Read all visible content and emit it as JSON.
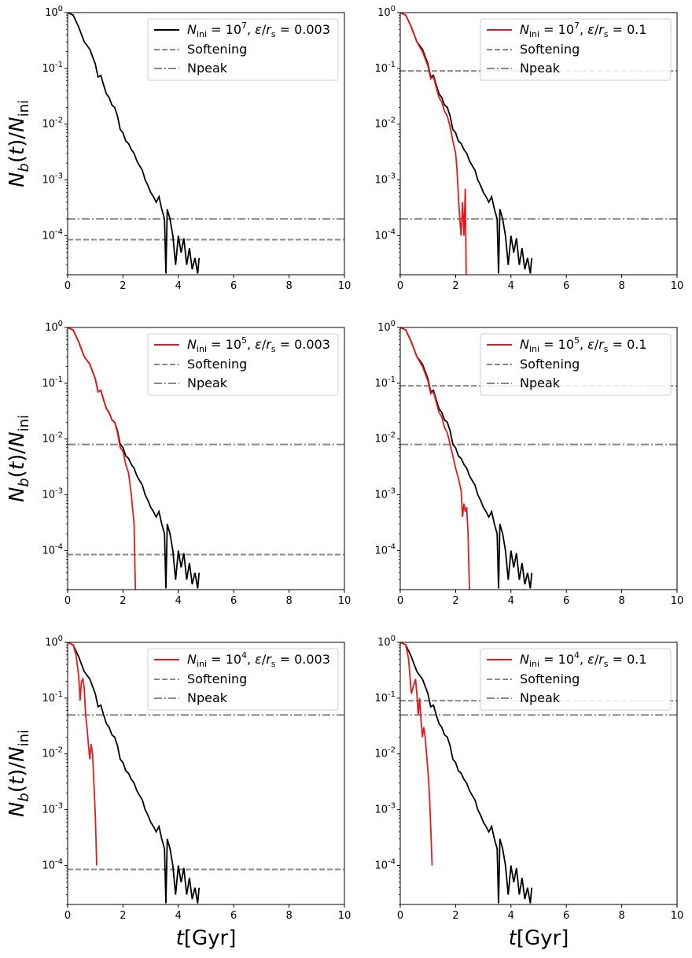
{
  "figure": {
    "ylabel": "N_b(t)/N_ini",
    "xlabel": "t[Gyr]",
    "colors": {
      "reference": "#000000",
      "run": "#e41a1c",
      "softening": "#888888",
      "npeak": "#888888"
    }
  },
  "chart_data": [
    {
      "type": "line",
      "yscale": "log",
      "xlim": [
        0,
        10
      ],
      "ylim": [
        2e-05,
        1
      ],
      "xticks": [
        "0",
        "2",
        "4",
        "6",
        "8",
        "10"
      ],
      "legend": {
        "placement": "top-right",
        "series_label": "N_ini = 10^7, ε/r_s = 0.003",
        "softening_label": "Softening",
        "npeak_label": "Npeak"
      },
      "series_color": "black",
      "softening_level": 8.5e-05,
      "npeak_level": 0.0002,
      "run": {
        "x": [
          0,
          0.2,
          0.4,
          0.6,
          0.8,
          1.0,
          1.1,
          1.2,
          1.3,
          1.4,
          1.5,
          1.6,
          1.7,
          1.8,
          1.9,
          2.0,
          2.1,
          2.2,
          2.3,
          2.4,
          2.5,
          2.6,
          2.7,
          2.8,
          2.9,
          3.0,
          3.1,
          3.2,
          3.3,
          3.4,
          3.5,
          3.55,
          3.6,
          3.7,
          3.8,
          3.9,
          4.0,
          4.1,
          4.2,
          4.3,
          4.4,
          4.5,
          4.6,
          4.7,
          4.75
        ],
        "y": [
          1,
          0.9,
          0.55,
          0.3,
          0.22,
          0.12,
          0.07,
          0.075,
          0.05,
          0.035,
          0.03,
          0.022,
          0.02,
          0.014,
          0.008,
          0.007,
          0.005,
          0.0045,
          0.0035,
          0.003,
          0.0022,
          0.0018,
          0.0015,
          0.001,
          0.0008,
          0.0006,
          0.0005,
          0.0004,
          0.0005,
          0.0003,
          0.0002,
          2.1e-05,
          0.0003,
          0.0002,
          0.0001,
          3e-05,
          0.0001,
          5e-05,
          9e-05,
          3e-05,
          6e-05,
          2.5e-05,
          4e-05,
          2.1e-05,
          4e-05
        ]
      }
    },
    {
      "type": "line",
      "yscale": "log",
      "xlim": [
        0,
        10
      ],
      "ylim": [
        2e-05,
        1
      ],
      "xticks": [
        "0",
        "2",
        "4",
        "6",
        "8",
        "10"
      ],
      "legend": {
        "placement": "top-right",
        "series_label": "N_ini = 10^7, ε/r_s = 0.1",
        "softening_label": "Softening",
        "npeak_label": "Npeak"
      },
      "series_color": "red",
      "softening_level": 0.09,
      "npeak_level": 0.0002,
      "run": {
        "x": [
          0,
          0.2,
          0.4,
          0.6,
          0.8,
          1.0,
          1.1,
          1.2,
          1.3,
          1.4,
          1.5,
          1.6,
          1.7,
          1.8,
          1.9,
          2.0,
          2.05,
          2.1,
          2.15,
          2.2,
          2.25,
          2.3,
          2.35,
          2.38
        ],
        "y": [
          1,
          0.9,
          0.55,
          0.3,
          0.2,
          0.11,
          0.065,
          0.07,
          0.045,
          0.03,
          0.025,
          0.017,
          0.014,
          0.009,
          0.005,
          0.003,
          0.0015,
          0.0005,
          0.0002,
          0.0001,
          0.0004,
          0.0001,
          0.0007,
          2e-05
        ]
      }
    },
    {
      "type": "line",
      "yscale": "log",
      "xlim": [
        0,
        10
      ],
      "ylim": [
        2e-05,
        1
      ],
      "xticks": [
        "0",
        "2",
        "4",
        "6",
        "8",
        "10"
      ],
      "legend": {
        "placement": "top-right",
        "series_label": "N_ini = 10^5, ε/r_s = 0.003",
        "softening_label": "Softening",
        "npeak_label": "Npeak"
      },
      "series_color": "red",
      "softening_level": 8.5e-05,
      "npeak_level": 0.008,
      "run": {
        "x": [
          0,
          0.2,
          0.4,
          0.6,
          0.8,
          1.0,
          1.1,
          1.2,
          1.3,
          1.4,
          1.5,
          1.6,
          1.7,
          1.8,
          1.9,
          2.0,
          2.1,
          2.2,
          2.3,
          2.4,
          2.45
        ],
        "y": [
          1,
          0.9,
          0.55,
          0.3,
          0.22,
          0.12,
          0.07,
          0.075,
          0.05,
          0.035,
          0.03,
          0.022,
          0.02,
          0.013,
          0.007,
          0.006,
          0.0035,
          0.0025,
          0.001,
          0.0003,
          2e-05
        ]
      }
    },
    {
      "type": "line",
      "yscale": "log",
      "xlim": [
        0,
        10
      ],
      "ylim": [
        2e-05,
        1
      ],
      "xticks": [
        "0",
        "2",
        "4",
        "6",
        "8",
        "10"
      ],
      "legend": {
        "placement": "top-right",
        "series_label": "N_ini = 10^5, ε/r_s = 0.1",
        "softening_label": "Softening",
        "npeak_label": "Npeak"
      },
      "series_color": "red",
      "softening_level": 0.09,
      "npeak_level": 0.008,
      "run": {
        "x": [
          0,
          0.2,
          0.4,
          0.6,
          0.8,
          1.0,
          1.1,
          1.2,
          1.3,
          1.4,
          1.5,
          1.6,
          1.7,
          1.8,
          1.9,
          2.0,
          2.1,
          2.2,
          2.25,
          2.3,
          2.35,
          2.4,
          2.45,
          2.5
        ],
        "y": [
          1,
          0.9,
          0.55,
          0.3,
          0.2,
          0.11,
          0.065,
          0.07,
          0.045,
          0.03,
          0.025,
          0.016,
          0.013,
          0.008,
          0.005,
          0.003,
          0.002,
          0.0012,
          0.0004,
          0.0007,
          0.0005,
          0.0006,
          0.0002,
          2e-05
        ]
      }
    },
    {
      "type": "line",
      "yscale": "log",
      "xlim": [
        0,
        10
      ],
      "ylim": [
        2e-05,
        1
      ],
      "xticks": [
        "0",
        "2",
        "4",
        "6",
        "8",
        "10"
      ],
      "legend": {
        "placement": "top-right",
        "series_label": "N_ini = 10^4, ε/r_s = 0.003",
        "softening_label": "Softening",
        "npeak_label": "Npeak"
      },
      "series_color": "red",
      "softening_level": 8.5e-05,
      "npeak_level": 0.05,
      "run": {
        "x": [
          0,
          0.2,
          0.3,
          0.4,
          0.45,
          0.5,
          0.55,
          0.6,
          0.65,
          0.7,
          0.75,
          0.8,
          0.85,
          0.9,
          0.95,
          1.0,
          1.05
        ],
        "y": [
          1,
          0.9,
          0.6,
          0.25,
          0.09,
          0.2,
          0.22,
          0.15,
          0.05,
          0.03,
          0.015,
          0.008,
          0.015,
          0.01,
          0.003,
          0.0008,
          0.0001
        ]
      }
    },
    {
      "type": "line",
      "yscale": "log",
      "xlim": [
        0,
        10
      ],
      "ylim": [
        2e-05,
        1
      ],
      "xticks": [
        "0",
        "2",
        "4",
        "6",
        "8",
        "10"
      ],
      "legend": {
        "placement": "top-right",
        "series_label": "N_ini = 10^4, ε/r_s = 0.1",
        "softening_label": "Softening",
        "npeak_label": "Npeak"
      },
      "series_color": "red",
      "softening_level": 0.09,
      "npeak_level": 0.05,
      "run": {
        "x": [
          0,
          0.2,
          0.3,
          0.4,
          0.5,
          0.55,
          0.6,
          0.65,
          0.7,
          0.75,
          0.8,
          0.85,
          0.9,
          0.95,
          1.0,
          1.05,
          1.1,
          1.15
        ],
        "y": [
          1,
          0.9,
          0.5,
          0.12,
          0.18,
          0.22,
          0.12,
          0.05,
          0.1,
          0.04,
          0.02,
          0.03,
          0.02,
          0.01,
          0.005,
          0.002,
          0.0005,
          0.0001
        ]
      }
    }
  ],
  "reference_run": {
    "x": [
      0,
      0.2,
      0.4,
      0.6,
      0.8,
      1.0,
      1.1,
      1.2,
      1.3,
      1.4,
      1.5,
      1.6,
      1.7,
      1.8,
      1.9,
      2.0,
      2.1,
      2.2,
      2.3,
      2.4,
      2.5,
      2.6,
      2.7,
      2.8,
      2.9,
      3.0,
      3.1,
      3.2,
      3.3,
      3.4,
      3.5,
      3.55,
      3.6,
      3.7,
      3.8,
      3.9,
      4.0,
      4.1,
      4.2,
      4.3,
      4.4,
      4.5,
      4.6,
      4.7,
      4.75
    ],
    "y": [
      1,
      0.9,
      0.55,
      0.3,
      0.22,
      0.12,
      0.07,
      0.075,
      0.05,
      0.035,
      0.03,
      0.022,
      0.02,
      0.014,
      0.008,
      0.007,
      0.005,
      0.0045,
      0.0035,
      0.003,
      0.0022,
      0.0018,
      0.0015,
      0.001,
      0.0008,
      0.0006,
      0.0005,
      0.0004,
      0.0005,
      0.0003,
      0.0002,
      2.1e-05,
      0.0003,
      0.0002,
      0.0001,
      3e-05,
      0.0001,
      5e-05,
      9e-05,
      3e-05,
      6e-05,
      2.5e-05,
      4e-05,
      2.1e-05,
      4e-05
    ]
  }
}
